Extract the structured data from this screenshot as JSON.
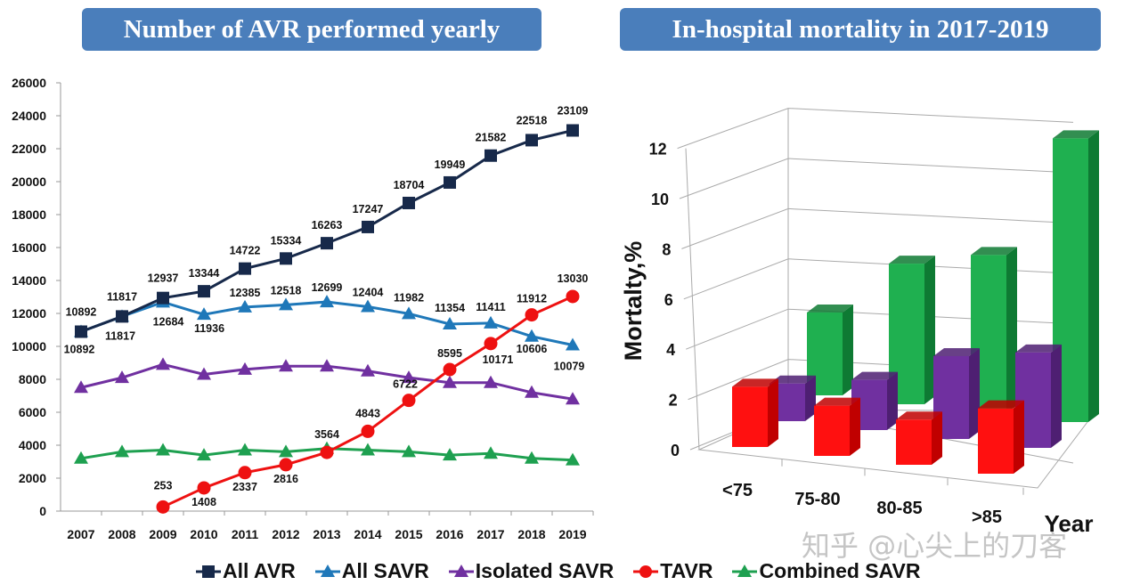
{
  "chart_data": [
    {
      "type": "line",
      "title": "Number of AVR performed yearly",
      "x": [
        2007,
        2008,
        2009,
        2010,
        2011,
        2012,
        2013,
        2014,
        2015,
        2016,
        2017,
        2018,
        2019
      ],
      "ylim": [
        0,
        26000
      ],
      "yticks": [
        0,
        2000,
        4000,
        6000,
        8000,
        10000,
        12000,
        14000,
        16000,
        18000,
        20000,
        22000,
        24000,
        26000
      ],
      "grid": false,
      "legend_placement": "bottom",
      "series": [
        {
          "name": "All AVR",
          "color": "#17294a",
          "marker": "square",
          "labeled": true,
          "values": [
            10892,
            11817,
            12937,
            13344,
            14722,
            15334,
            16263,
            17247,
            18704,
            19949,
            21582,
            22518,
            23109
          ]
        },
        {
          "name": "All SAVR",
          "color": "#1f78b9",
          "marker": "triangle",
          "labeled": true,
          "values": [
            10892,
            11817,
            12684,
            11936,
            12385,
            12518,
            12699,
            12404,
            11982,
            11354,
            11411,
            10606,
            10079
          ]
        },
        {
          "name": "Isolated SAVR",
          "color": "#7030a0",
          "marker": "triangle",
          "labeled": false,
          "values": [
            7500,
            8100,
            8900,
            8300,
            8600,
            8800,
            8800,
            8500,
            8100,
            7800,
            7800,
            7200,
            6800
          ]
        },
        {
          "name": "TAVR",
          "color": "#ee1111",
          "marker": "circle",
          "labeled": true,
          "values": [
            null,
            null,
            253,
            1408,
            2337,
            2816,
            3564,
            4843,
            6722,
            8595,
            10171,
            11912,
            13030
          ]
        },
        {
          "name": "Combined SAVR",
          "color": "#1ea050",
          "marker": "triangle",
          "labeled": false,
          "values": [
            3200,
            3600,
            3700,
            3400,
            3700,
            3600,
            3800,
            3700,
            3600,
            3400,
            3500,
            3200,
            3100
          ]
        }
      ]
    },
    {
      "type": "bar3d",
      "title": "In-hospital mortality in 2017-2019",
      "ylabel": "Mortalty,%",
      "xlabel": "Year",
      "categories": [
        "<75",
        "75-80",
        "80-85",
        ">85"
      ],
      "ylim": [
        0,
        12
      ],
      "yticks": [
        0,
        2,
        4,
        6,
        8,
        10,
        12
      ],
      "series": [
        {
          "color": "#ff1010",
          "side": "#c00000",
          "values": [
            2.4,
            2.0,
            1.8,
            2.6
          ]
        },
        {
          "color": "#7030a0",
          "side": "#4e1f72",
          "values": [
            1.5,
            2.0,
            3.3,
            3.8
          ]
        },
        {
          "color": "#1fb050",
          "side": "#0e7a33",
          "values": [
            3.3,
            5.6,
            6.3,
            11.3
          ]
        }
      ]
    }
  ],
  "watermark": "知乎 @心尖上的刀客"
}
